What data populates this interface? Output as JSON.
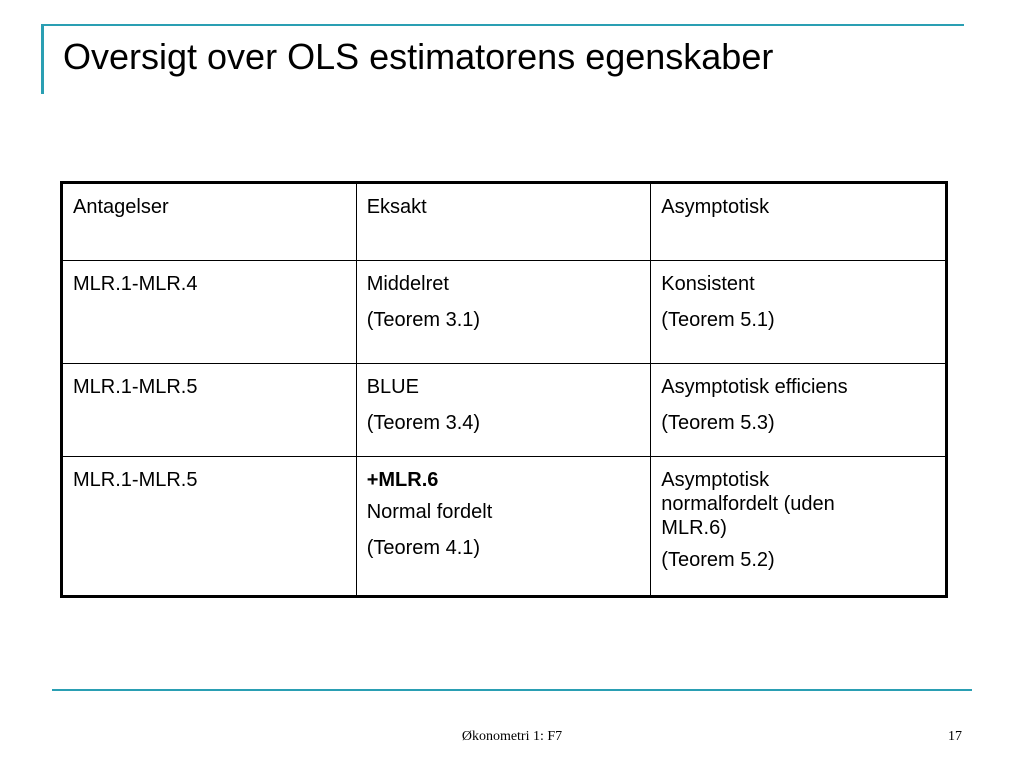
{
  "slide": {
    "title": "Oversigt over OLS estimatorens egenskaber",
    "accent_color": "#2a9fb3"
  },
  "table": {
    "headers": [
      "Antagelser",
      "Eksakt",
      "Asymptotisk"
    ],
    "rows": [
      {
        "assumptions": "MLR.1-MLR.4",
        "exact": [
          "Middelret",
          "(Teorem 3.1)"
        ],
        "asymptotic": [
          "Konsistent",
          "(Teorem 5.1)"
        ]
      },
      {
        "assumptions": "MLR.1-MLR.5",
        "exact": [
          "BLUE",
          "(Teorem 3.4)"
        ],
        "asymptotic": [
          "Asymptotisk efficiens",
          "(Teorem 5.3)"
        ]
      },
      {
        "assumptions": "MLR.1-MLR.5",
        "exact_bold": "+MLR.6",
        "exact": [
          "Normal fordelt",
          "(Teorem 4.1)"
        ],
        "asymptotic": [
          "Asymptotisk normalfordelt (uden MLR.6)",
          "(Teorem 5.2)"
        ]
      }
    ]
  },
  "footer": {
    "center_text": "Økonometri 1: F7",
    "page_number": "17"
  }
}
